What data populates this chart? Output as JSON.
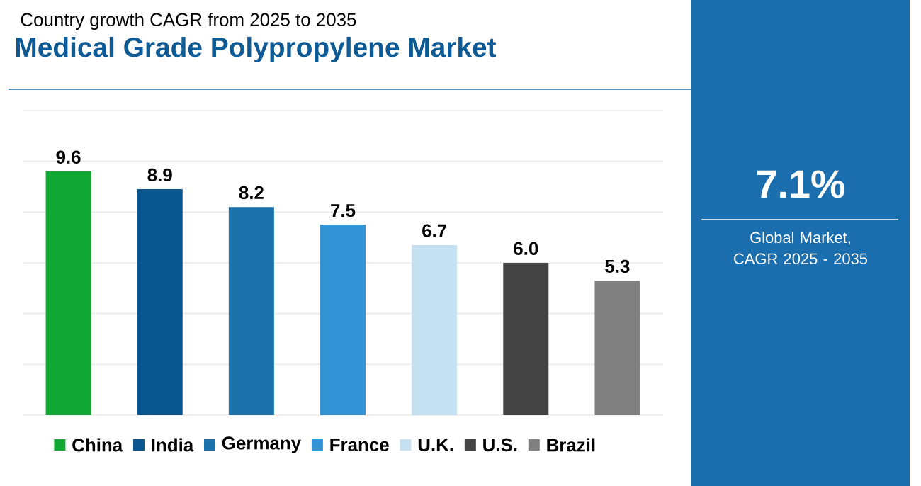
{
  "chart_data": {
    "type": "bar",
    "title": "Medical Grade Polypropylene Market",
    "subtitle": "Country growth CAGR from 2025 to 2035",
    "categories": [
      "China",
      "India",
      "Germany",
      "France",
      "U.K.",
      "U.S.",
      "Brazil"
    ],
    "values": [
      9.6,
      8.9,
      8.2,
      7.5,
      6.7,
      6.0,
      5.3
    ],
    "colors": [
      "#12a835",
      "#0a568f",
      "#1c72ab",
      "#3495d6",
      "#c5e0f0",
      "#444444",
      "#808080"
    ],
    "ylim": [
      0,
      12
    ],
    "yticks": [
      {
        "value": 0,
        "label": null
      },
      {
        "value": 2,
        "label": null
      },
      {
        "value": 4,
        "label": null
      },
      {
        "value": 6,
        "label": null
      },
      {
        "value": 8,
        "label": null
      },
      {
        "value": 10,
        "label": null
      },
      {
        "value": 12,
        "label": null
      }
    ],
    "value_labels": [
      "9.6",
      "8.9",
      "8.2",
      "7.5",
      "6.7",
      "6.0",
      "5.3"
    ],
    "grid": "y",
    "tick_labels": false,
    "annotations": [
      "7.1%",
      "Global Market, CAGR 2025 - 2035"
    ]
  }
}
